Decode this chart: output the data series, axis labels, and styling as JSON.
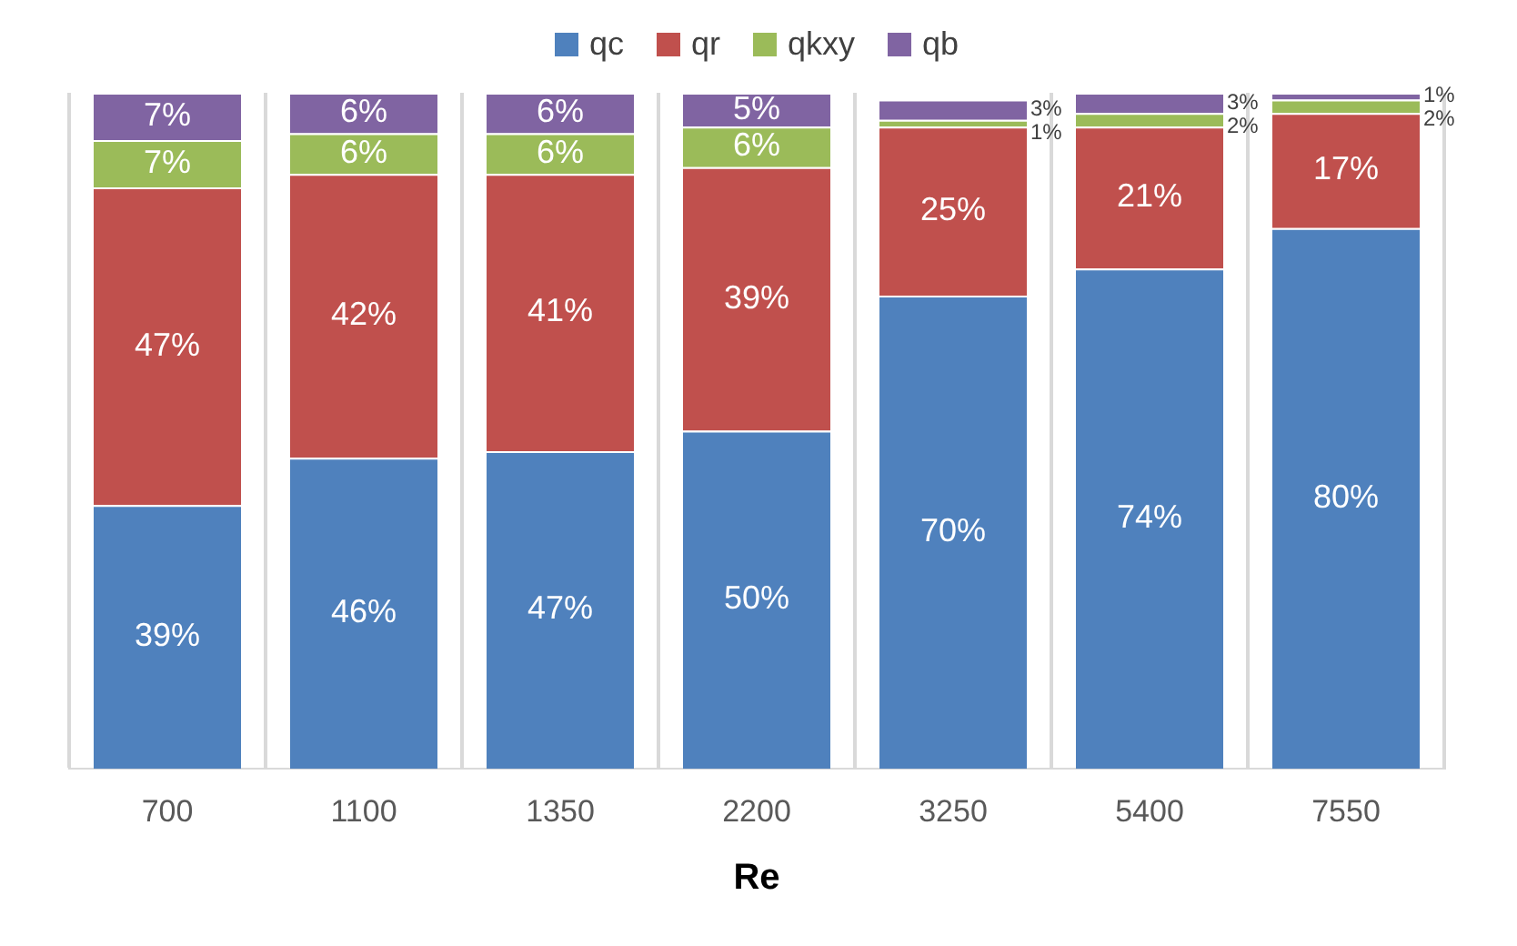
{
  "chart_data": {
    "type": "bar",
    "stacked": true,
    "xlabel": "Re",
    "categories": [
      "700",
      "1100",
      "1350",
      "2200",
      "3250",
      "5400",
      "7550"
    ],
    "ylim": [
      0,
      100
    ],
    "tick_labels": "x",
    "grid": "x",
    "legend": "top",
    "series": [
      {
        "name": "qc",
        "color": "#4f81bd",
        "values": [
          39,
          46,
          47,
          50,
          70,
          74,
          80
        ],
        "value_labels": [
          "39%",
          "46%",
          "47%",
          "50%",
          "70%",
          "74%",
          "80%"
        ]
      },
      {
        "name": "qr",
        "color": "#c0504d",
        "values": [
          47,
          42,
          41,
          39,
          25,
          21,
          17
        ],
        "value_labels": [
          "47%",
          "42%",
          "41%",
          "39%",
          "25%",
          "21%",
          "17%"
        ]
      },
      {
        "name": "qkxy",
        "color": "#9bbb59",
        "values": [
          7,
          6,
          6,
          6,
          1,
          2,
          2
        ],
        "value_labels": [
          "7%",
          "6%",
          "6%",
          "6%",
          "1%",
          "2%",
          "2%"
        ]
      },
      {
        "name": "qb",
        "color": "#8064a2",
        "values": [
          7,
          6,
          6,
          5,
          3,
          3,
          1
        ],
        "value_labels": [
          "7%",
          "6%",
          "6%",
          "5%",
          "3%",
          "3%",
          "1%"
        ]
      }
    ]
  }
}
